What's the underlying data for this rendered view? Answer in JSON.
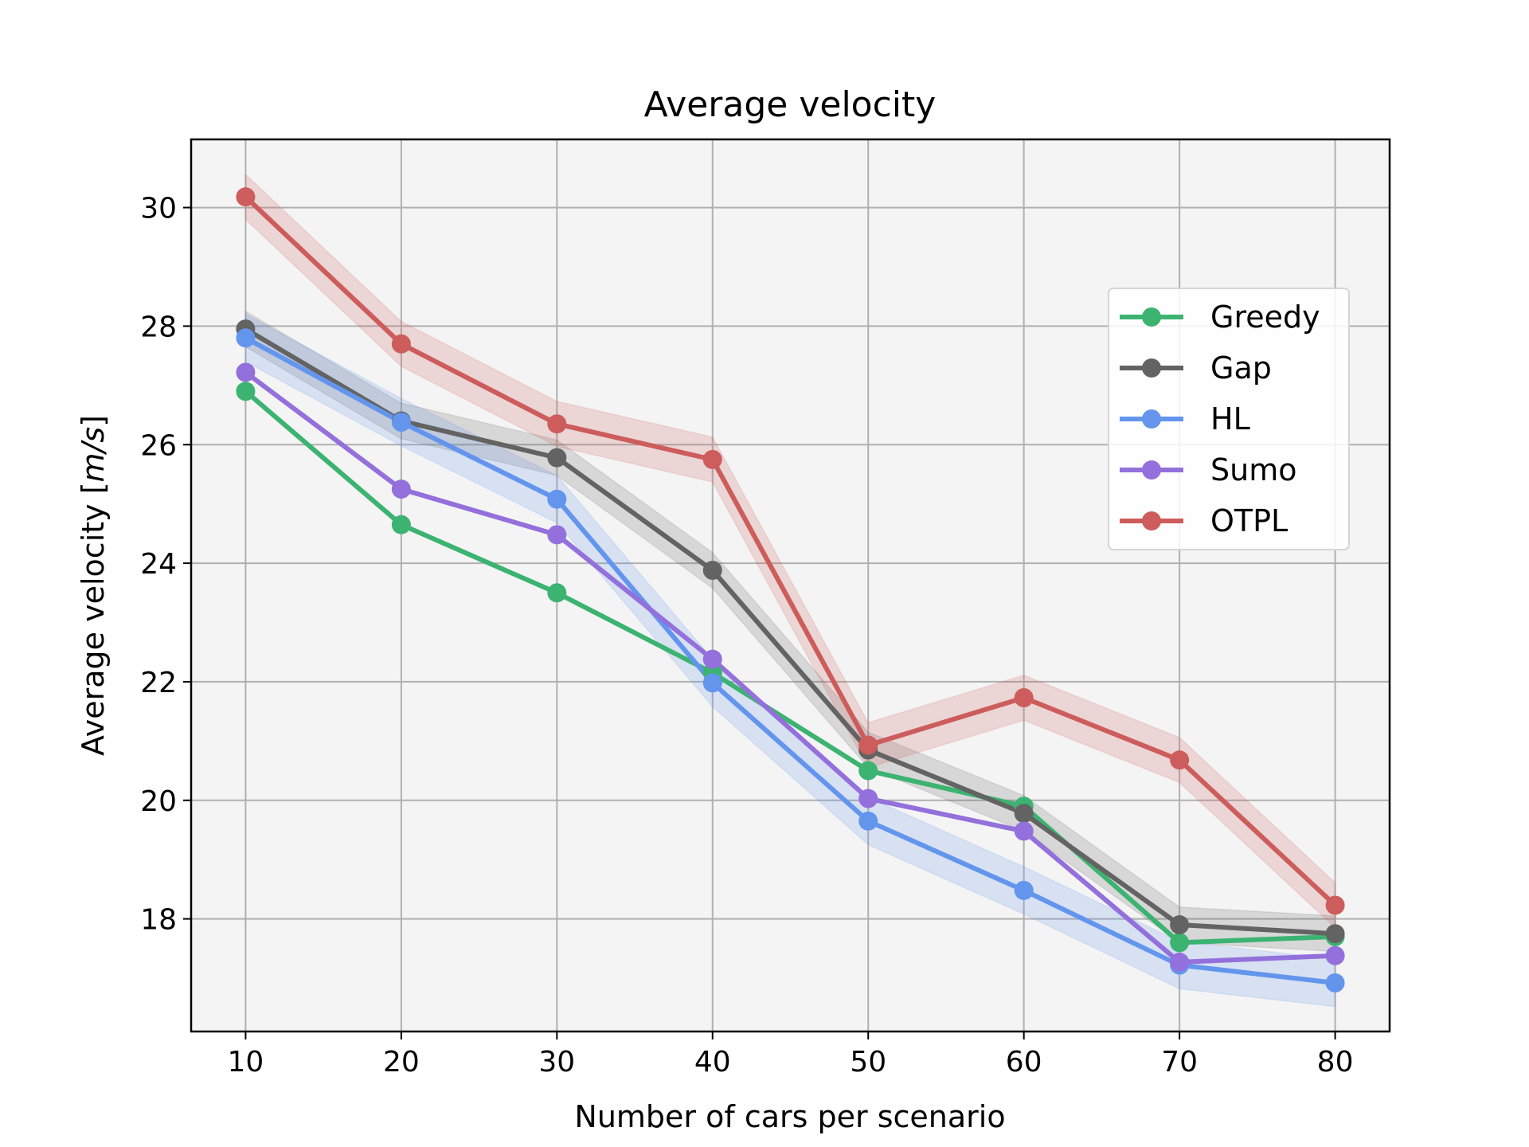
{
  "chart_data": {
    "type": "line",
    "title": "Average velocity",
    "xlabel": "Number of cars per scenario",
    "ylabel_prefix": "Average velocity [",
    "ylabel_unit": "m/s",
    "ylabel_suffix": "]",
    "x": [
      10,
      20,
      30,
      40,
      50,
      60,
      70,
      80
    ],
    "xticks": [
      10,
      20,
      30,
      40,
      50,
      60,
      70,
      80
    ],
    "yticks": [
      18,
      20,
      22,
      24,
      26,
      28,
      30
    ],
    "xlim": [
      6.5,
      83.5
    ],
    "ylim": [
      16.1,
      31.15
    ],
    "grid": true,
    "legend_position": "center-right",
    "series": [
      {
        "name": "Greedy",
        "color": "#3cb371",
        "values": [
          26.9,
          24.65,
          23.5,
          22.15,
          20.5,
          19.9,
          17.6,
          17.7
        ],
        "band": 0
      },
      {
        "name": "Gap",
        "color": "#636363",
        "values": [
          27.95,
          26.4,
          25.78,
          23.88,
          20.85,
          19.78,
          17.9,
          17.75
        ],
        "band": 0.3
      },
      {
        "name": "HL",
        "color": "#6495ed",
        "values": [
          27.8,
          26.38,
          25.08,
          21.98,
          19.65,
          18.48,
          17.22,
          16.92
        ],
        "band": 0.4
      },
      {
        "name": "Sumo",
        "color": "#9370db",
        "values": [
          27.22,
          25.25,
          24.48,
          22.38,
          20.03,
          19.48,
          17.27,
          17.38
        ],
        "band": 0
      },
      {
        "name": "OTPL",
        "color": "#cd5c5c",
        "values": [
          30.18,
          27.7,
          26.35,
          25.75,
          20.93,
          21.73,
          20.68,
          18.23
        ],
        "band": 0.38
      }
    ]
  }
}
